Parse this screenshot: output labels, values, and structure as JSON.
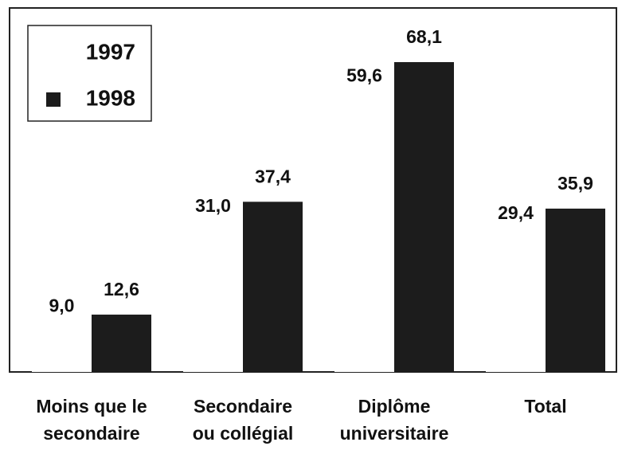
{
  "chart_data": {
    "type": "bar",
    "categories": [
      [
        "Moins que le",
        "secondaire"
      ],
      [
        "Secondaire",
        "ou collégial"
      ],
      [
        "Diplôme",
        "universitaire"
      ],
      [
        "Total"
      ]
    ],
    "series": [
      {
        "name": "1997",
        "color": "#ffffff",
        "values": [
          9.0,
          31.0,
          59.6,
          29.4
        ],
        "value_labels": [
          "9,0",
          "31,0",
          "59,6",
          "29,4"
        ]
      },
      {
        "name": "1998",
        "color": "#1c1c1c",
        "values": [
          12.6,
          37.4,
          68.1,
          35.9
        ],
        "value_labels": [
          "12,6",
          "37,4",
          "68,1",
          "35,9"
        ]
      }
    ],
    "ylim": [
      0,
      80
    ],
    "legend": "upper left"
  }
}
